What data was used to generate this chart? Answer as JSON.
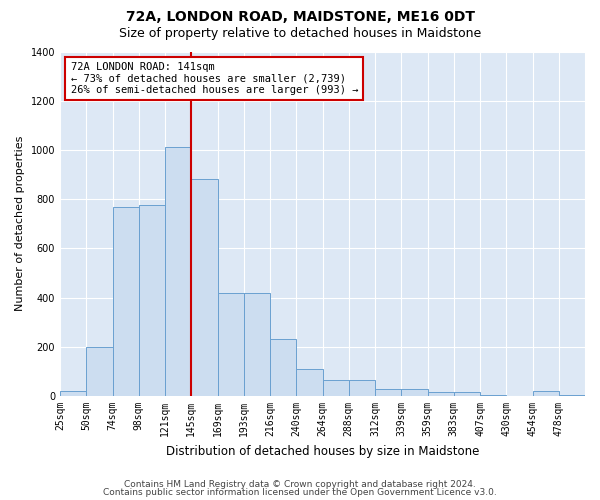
{
  "title": "72A, LONDON ROAD, MAIDSTONE, ME16 0DT",
  "subtitle": "Size of property relative to detached houses in Maidstone",
  "xlabel": "Distribution of detached houses by size in Maidstone",
  "ylabel": "Number of detached properties",
  "categories": [
    "25sqm",
    "50sqm",
    "74sqm",
    "98sqm",
    "121sqm",
    "145sqm",
    "169sqm",
    "193sqm",
    "216sqm",
    "240sqm",
    "264sqm",
    "288sqm",
    "312sqm",
    "339sqm",
    "359sqm",
    "383sqm",
    "407sqm",
    "430sqm",
    "454sqm",
    "478sqm"
  ],
  "values": [
    20,
    200,
    770,
    775,
    1010,
    880,
    420,
    420,
    230,
    110,
    65,
    65,
    30,
    30,
    15,
    15,
    5,
    0,
    20,
    5
  ],
  "bar_color": "#ccddf0",
  "bar_edge_color": "#6aa0d0",
  "vline_color": "#cc0000",
  "annotation_text": "72A LONDON ROAD: 141sqm\n← 73% of detached houses are smaller (2,739)\n26% of semi-detached houses are larger (993) →",
  "annotation_box_color": "#ffffff",
  "annotation_box_edge_color": "#cc0000",
  "ylim": [
    0,
    1400
  ],
  "yticks": [
    0,
    200,
    400,
    600,
    800,
    1000,
    1200,
    1400
  ],
  "footer1": "Contains HM Land Registry data © Crown copyright and database right 2024.",
  "footer2": "Contains public sector information licensed under the Open Government Licence v3.0.",
  "bg_color": "#dde8f5",
  "fig_bg_color": "#ffffff",
  "title_fontsize": 10,
  "subtitle_fontsize": 9,
  "ylabel_fontsize": 8,
  "xlabel_fontsize": 8.5,
  "tick_fontsize": 7,
  "annot_fontsize": 7.5,
  "footer_fontsize": 6.5
}
